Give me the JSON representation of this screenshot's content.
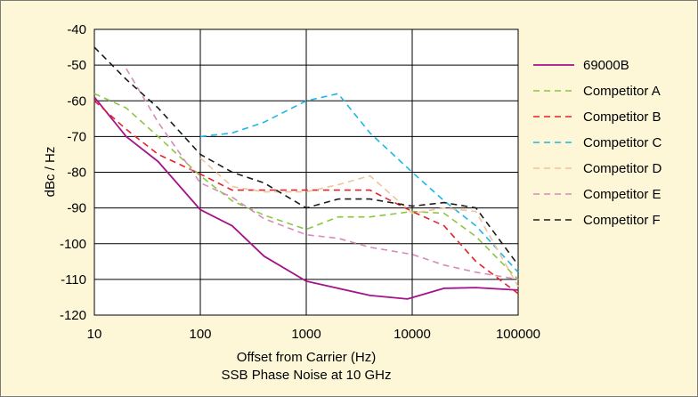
{
  "chart_data": {
    "type": "line",
    "title": "",
    "xlabel": "Offset from Carrier (Hz)",
    "subtitle": "SSB Phase Noise at 10 GHz",
    "ylabel": "dBc / Hz",
    "xscale": "log",
    "xlim": [
      10,
      100000
    ],
    "ylim": [
      -120,
      -40
    ],
    "x_ticks": [
      "10",
      "100",
      "1000",
      "10000",
      "100000"
    ],
    "y_ticks": [
      "-40",
      "-50",
      "-60",
      "-70",
      "-80",
      "-90",
      "-100",
      "-110",
      "-120"
    ],
    "grid": true,
    "legend_position": "right",
    "series": [
      {
        "name": "69000B",
        "color": "#A4128A",
        "dash": "solid",
        "points": [
          [
            10,
            -59
          ],
          [
            20,
            -70
          ],
          [
            40,
            -77
          ],
          [
            100,
            -90.5
          ],
          [
            200,
            -95
          ],
          [
            400,
            -103.5
          ],
          [
            1000,
            -110.5
          ],
          [
            2000,
            -112.5
          ],
          [
            4000,
            -114.5
          ],
          [
            9000,
            -115.5
          ],
          [
            20000,
            -112.5
          ],
          [
            40000,
            -112.3
          ],
          [
            100000,
            -113
          ]
        ]
      },
      {
        "name": "Competitor A",
        "color": "#8CC63F",
        "dash": "dashed",
        "points": [
          [
            10,
            -58
          ],
          [
            20,
            -62
          ],
          [
            40,
            -70
          ],
          [
            100,
            -81
          ],
          [
            200,
            -88
          ],
          [
            400,
            -92
          ],
          [
            1000,
            -96
          ],
          [
            2000,
            -92.5
          ],
          [
            4000,
            -92.5
          ],
          [
            10000,
            -91
          ],
          [
            20000,
            -91.5
          ],
          [
            40000,
            -98
          ],
          [
            100000,
            -110
          ]
        ]
      },
      {
        "name": "Competitor B",
        "color": "#E2232A",
        "dash": "dashed",
        "points": [
          [
            10,
            -60
          ],
          [
            20,
            -68
          ],
          [
            40,
            -75
          ],
          [
            100,
            -80.5
          ],
          [
            200,
            -85
          ],
          [
            400,
            -85
          ],
          [
            1000,
            -85
          ],
          [
            2000,
            -85
          ],
          [
            4000,
            -85
          ],
          [
            10000,
            -91
          ],
          [
            20000,
            -95
          ],
          [
            40000,
            -105
          ],
          [
            100000,
            -114
          ]
        ]
      },
      {
        "name": "Competitor C",
        "color": "#1BB7E6",
        "dash": "dashed",
        "points": [
          [
            100,
            -70
          ],
          [
            200,
            -69
          ],
          [
            400,
            -66
          ],
          [
            1000,
            -60
          ],
          [
            2000,
            -58
          ],
          [
            4000,
            -69
          ],
          [
            10000,
            -80
          ],
          [
            20000,
            -88
          ],
          [
            40000,
            -95
          ],
          [
            100000,
            -108
          ]
        ]
      },
      {
        "name": "Competitor D",
        "color": "#F0C399",
        "dash": "dashed",
        "points": [
          [
            100,
            -76
          ],
          [
            200,
            -84
          ],
          [
            400,
            -85.5
          ],
          [
            1000,
            -85.5
          ],
          [
            2000,
            -83.5
          ],
          [
            4000,
            -81
          ],
          [
            10000,
            -91.5
          ],
          [
            20000,
            -90
          ],
          [
            40000,
            -91
          ],
          [
            100000,
            -112
          ]
        ]
      },
      {
        "name": "Competitor E",
        "color": "#D78BB9",
        "dash": "dashed",
        "points": [
          [
            20,
            -51
          ],
          [
            40,
            -66
          ],
          [
            100,
            -83
          ],
          [
            200,
            -87
          ],
          [
            400,
            -93
          ],
          [
            1000,
            -97.5
          ],
          [
            2000,
            -98.5
          ],
          [
            4000,
            -101
          ],
          [
            10000,
            -103
          ],
          [
            20000,
            -106
          ],
          [
            40000,
            -108
          ],
          [
            100000,
            -110
          ]
        ]
      },
      {
        "name": "Competitor F",
        "color": "#1A1A1A",
        "dash": "dashed",
        "points": [
          [
            10,
            -45
          ],
          [
            20,
            -54
          ],
          [
            40,
            -62
          ],
          [
            100,
            -75
          ],
          [
            200,
            -80
          ],
          [
            400,
            -83
          ],
          [
            1000,
            -90
          ],
          [
            2000,
            -87.5
          ],
          [
            4000,
            -87.5
          ],
          [
            10000,
            -89.5
          ],
          [
            20000,
            -88.5
          ],
          [
            40000,
            -90
          ],
          [
            100000,
            -106
          ]
        ]
      }
    ]
  }
}
